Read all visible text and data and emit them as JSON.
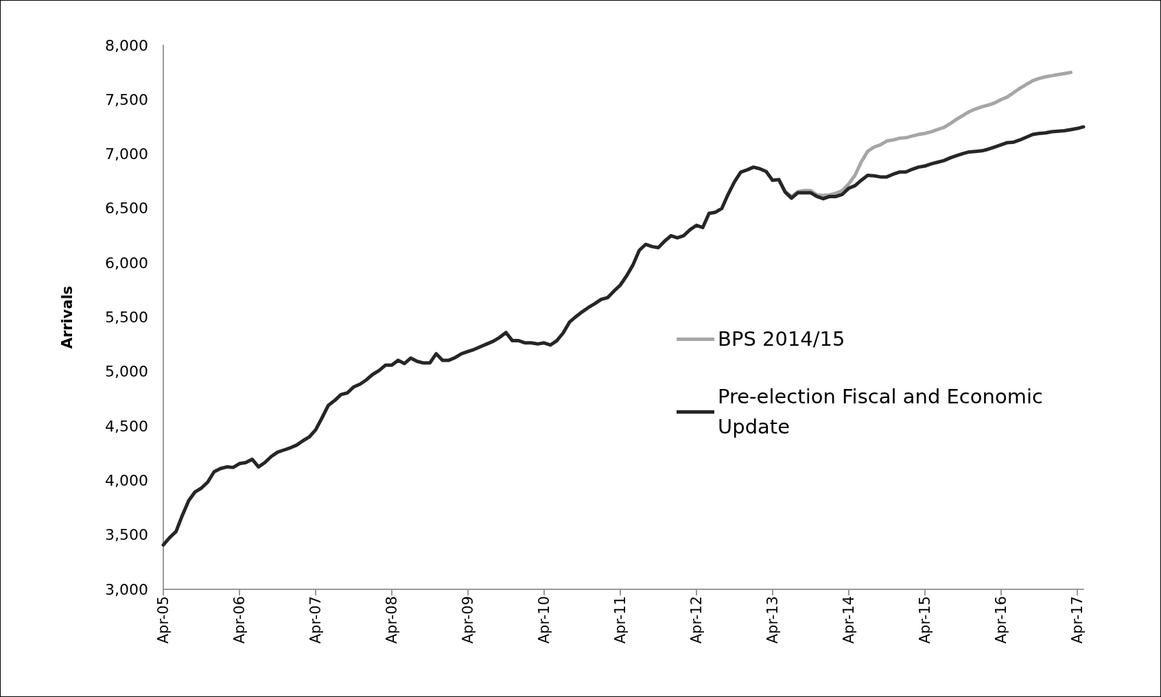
{
  "chart_data": {
    "type": "line",
    "ylabel": "Arrivals",
    "categories": [
      "Apr-05",
      null,
      null,
      null,
      null,
      null,
      null,
      null,
      null,
      null,
      null,
      null,
      "Apr-06",
      null,
      null,
      null,
      null,
      null,
      null,
      null,
      null,
      null,
      null,
      null,
      "Apr-07",
      null,
      null,
      null,
      null,
      null,
      null,
      null,
      null,
      null,
      null,
      null,
      "Apr-08",
      null,
      null,
      null,
      null,
      null,
      null,
      null,
      null,
      null,
      null,
      null,
      "Apr-09",
      null,
      null,
      null,
      null,
      null,
      null,
      null,
      null,
      null,
      null,
      null,
      "Apr-10",
      null,
      null,
      null,
      null,
      null,
      null,
      null,
      null,
      null,
      null,
      null,
      "Apr-11",
      null,
      null,
      null,
      null,
      null,
      null,
      null,
      null,
      null,
      null,
      null,
      "Apr-12",
      null,
      null,
      null,
      null,
      null,
      null,
      null,
      null,
      null,
      null,
      null,
      "Apr-13",
      null,
      null,
      null,
      null,
      null,
      null,
      null,
      null,
      null,
      null,
      null,
      "Apr-14",
      null,
      null,
      null,
      null,
      null,
      null,
      null,
      null,
      null,
      null,
      null,
      "Apr-15",
      null,
      null,
      null,
      null,
      null,
      null,
      null,
      null,
      null,
      null,
      null,
      "Apr-16",
      null,
      null,
      null,
      null,
      null,
      null,
      null,
      null,
      null,
      null,
      null,
      "Apr-17",
      null
    ],
    "series": [
      {
        "name": "BPS 2014/15",
        "color": "#a6a6a6",
        "values": [
          null,
          null,
          null,
          null,
          null,
          null,
          null,
          null,
          null,
          null,
          null,
          null,
          null,
          null,
          null,
          null,
          null,
          null,
          null,
          null,
          null,
          null,
          null,
          null,
          null,
          null,
          null,
          null,
          null,
          null,
          null,
          null,
          null,
          null,
          null,
          null,
          null,
          null,
          null,
          null,
          null,
          null,
          null,
          null,
          null,
          null,
          null,
          null,
          null,
          null,
          null,
          null,
          null,
          null,
          null,
          null,
          null,
          null,
          null,
          null,
          null,
          null,
          null,
          null,
          null,
          null,
          null,
          null,
          null,
          null,
          null,
          null,
          null,
          null,
          null,
          null,
          null,
          null,
          null,
          null,
          null,
          null,
          null,
          null,
          null,
          null,
          null,
          null,
          null,
          null,
          null,
          null,
          null,
          null,
          null,
          null,
          6760,
          6765,
          6655,
          6610,
          6655,
          6665,
          6665,
          6625,
          6620,
          6625,
          6640,
          6665,
          6725,
          6805,
          6930,
          7025,
          7065,
          7085,
          7120,
          7130,
          7145,
          7150,
          7165,
          7180,
          7190,
          7205,
          7225,
          7245,
          7280,
          7320,
          7355,
          7390,
          7415,
          7435,
          7450,
          7470,
          7500,
          7525,
          7565,
          7605,
          7640,
          7675,
          7695,
          7710,
          7720,
          7730,
          7740,
          7750,
          null,
          null
        ]
      },
      {
        "name": "Pre-election Fiscal and Economic Update",
        "color": "#262626",
        "values": [
          3407,
          3475,
          3530,
          3680,
          3815,
          3895,
          3930,
          3985,
          4080,
          4110,
          4125,
          4120,
          4155,
          4165,
          4195,
          4125,
          4165,
          4220,
          4260,
          4280,
          4300,
          4325,
          4365,
          4400,
          4465,
          4575,
          4690,
          4735,
          4790,
          4805,
          4860,
          4885,
          4925,
          4975,
          5010,
          5060,
          5060,
          5105,
          5075,
          5125,
          5095,
          5080,
          5080,
          5165,
          5105,
          5105,
          5130,
          5165,
          5185,
          5205,
          5230,
          5255,
          5280,
          5315,
          5360,
          5285,
          5285,
          5265,
          5265,
          5255,
          5265,
          5245,
          5285,
          5355,
          5455,
          5505,
          5550,
          5590,
          5625,
          5665,
          5680,
          5740,
          5795,
          5880,
          5980,
          6115,
          6170,
          6150,
          6140,
          6200,
          6250,
          6230,
          6250,
          6305,
          6345,
          6325,
          6455,
          6465,
          6500,
          6630,
          6745,
          6835,
          6855,
          6880,
          6865,
          6840,
          6760,
          6765,
          6650,
          6595,
          6645,
          6645,
          6645,
          6610,
          6590,
          6610,
          6610,
          6630,
          6685,
          6710,
          6760,
          6805,
          6800,
          6790,
          6790,
          6815,
          6835,
          6835,
          6860,
          6880,
          6890,
          6910,
          6925,
          6940,
          6965,
          6985,
          7005,
          7020,
          7025,
          7030,
          7045,
          7065,
          7085,
          7105,
          7110,
          7130,
          7155,
          7180,
          7190,
          7195,
          7205,
          7210,
          7215,
          7225,
          7235,
          7250
        ]
      }
    ],
    "ylim": [
      3000,
      8000
    ],
    "yticks": [
      {
        "value": 3000,
        "label": "3,000"
      },
      {
        "value": 3500,
        "label": "3,500"
      },
      {
        "value": 4000,
        "label": "4,000"
      },
      {
        "value": 4500,
        "label": "4,500"
      },
      {
        "value": 5000,
        "label": "5,000"
      },
      {
        "value": 5500,
        "label": "5,500"
      },
      {
        "value": 6000,
        "label": "6,000"
      },
      {
        "value": 6500,
        "label": "6,500"
      },
      {
        "value": 7000,
        "label": "7,000"
      },
      {
        "value": 7500,
        "label": "7,500"
      },
      {
        "value": 8000,
        "label": "8,000"
      }
    ],
    "grid": false,
    "legend": "right",
    "marker": "none",
    "line_style": "solid"
  }
}
